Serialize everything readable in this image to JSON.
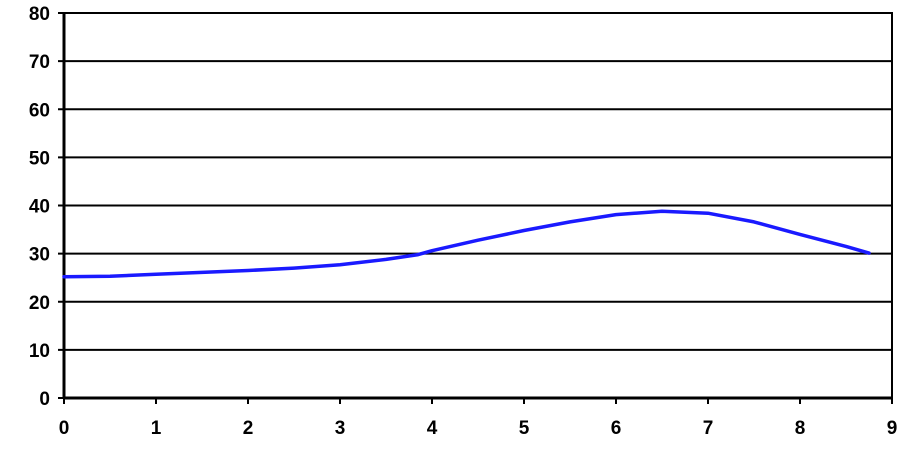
{
  "chart_data": {
    "type": "line",
    "title": "",
    "xlabel": "",
    "ylabel": "",
    "xlim": [
      0,
      9
    ],
    "ylim": [
      0,
      80
    ],
    "x_ticks": [
      "0",
      "1",
      "2",
      "3",
      "4",
      "5",
      "6",
      "7",
      "8",
      "9"
    ],
    "y_ticks": [
      "0",
      "10",
      "20",
      "30",
      "40",
      "50",
      "60",
      "70",
      "80"
    ],
    "grid": "horizontal",
    "legend": "none",
    "colors": {
      "line": "#1a1aff",
      "grid": "#000000",
      "axis": "#000000"
    },
    "series": [
      {
        "x": [
          0,
          0.5,
          1,
          1.5,
          2,
          2.5,
          3,
          3.5,
          3.85,
          4,
          4.5,
          5,
          5.5,
          6,
          6.5,
          7,
          7.5,
          8,
          8.5,
          8.75
        ],
        "y": [
          25.2,
          25.3,
          25.7,
          26.1,
          26.5,
          27,
          27.7,
          28.8,
          29.8,
          30.6,
          32.8,
          34.8,
          36.6,
          38.1,
          38.8,
          38.4,
          36.6,
          34,
          31.5,
          30.1
        ]
      }
    ]
  }
}
